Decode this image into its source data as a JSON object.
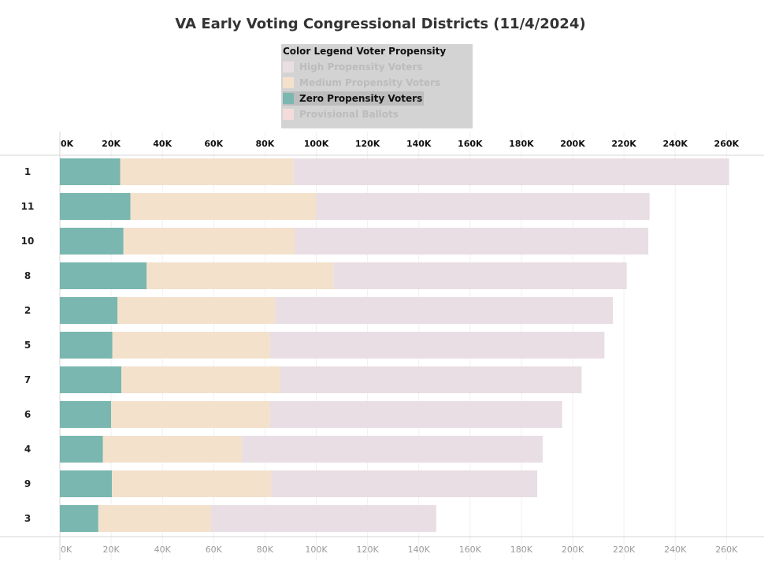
{
  "chart_data": {
    "type": "bar",
    "orientation": "horizontal",
    "stacked": true,
    "title": "VA Early Voting Congressional Districts (11/4/2024)",
    "legend": {
      "title": "Color Legend Voter Propensity",
      "placement": "top-center",
      "items": [
        {
          "label": "High Propensity Voters",
          "color": "#e8dee4",
          "dimmed": true
        },
        {
          "label": "Medium Propensity Voters",
          "color": "#f3e1cb",
          "dimmed": true
        },
        {
          "label": "Zero Propensity Voters",
          "color": "#79b7b0",
          "dimmed": false
        },
        {
          "label": "Provisional Ballots",
          "color": "#f4dcdc",
          "dimmed": true
        }
      ]
    },
    "categories": [
      "1",
      "11",
      "10",
      "8",
      "2",
      "5",
      "7",
      "6",
      "4",
      "9",
      "3"
    ],
    "series": [
      {
        "name": "Zero Propensity Voters",
        "color": "#79b7b0",
        "values": [
          23500,
          27500,
          24800,
          33800,
          22500,
          20500,
          24000,
          20000,
          16800,
          20300,
          15000
        ]
      },
      {
        "name": "Medium Propensity Voters",
        "color": "#f3e1cb",
        "values": [
          67500,
          72500,
          66900,
          73000,
          61500,
          61500,
          62000,
          61900,
          54200,
          62200,
          44000
        ]
      },
      {
        "name": "High Propensity Voters",
        "color": "#e8dee4",
        "values": [
          170000,
          130000,
          137800,
          114300,
          131700,
          130400,
          117500,
          114000,
          117300,
          103700,
          87800
        ]
      },
      {
        "name": "Provisional Ballots",
        "color": "#f4dcdc",
        "values": [
          0,
          0,
          0,
          0,
          0,
          0,
          0,
          0,
          0,
          0,
          0
        ]
      }
    ],
    "xlim": [
      0,
      270000
    ],
    "xticks": [
      0,
      20000,
      40000,
      60000,
      80000,
      100000,
      120000,
      140000,
      160000,
      180000,
      200000,
      220000,
      240000,
      260000
    ],
    "xtick_labels": [
      "0K",
      "20K",
      "40K",
      "60K",
      "80K",
      "100K",
      "120K",
      "140K",
      "160K",
      "180K",
      "200K",
      "220K",
      "240K",
      "260K"
    ],
    "xlabel": "",
    "ylabel": "",
    "grid": true
  }
}
